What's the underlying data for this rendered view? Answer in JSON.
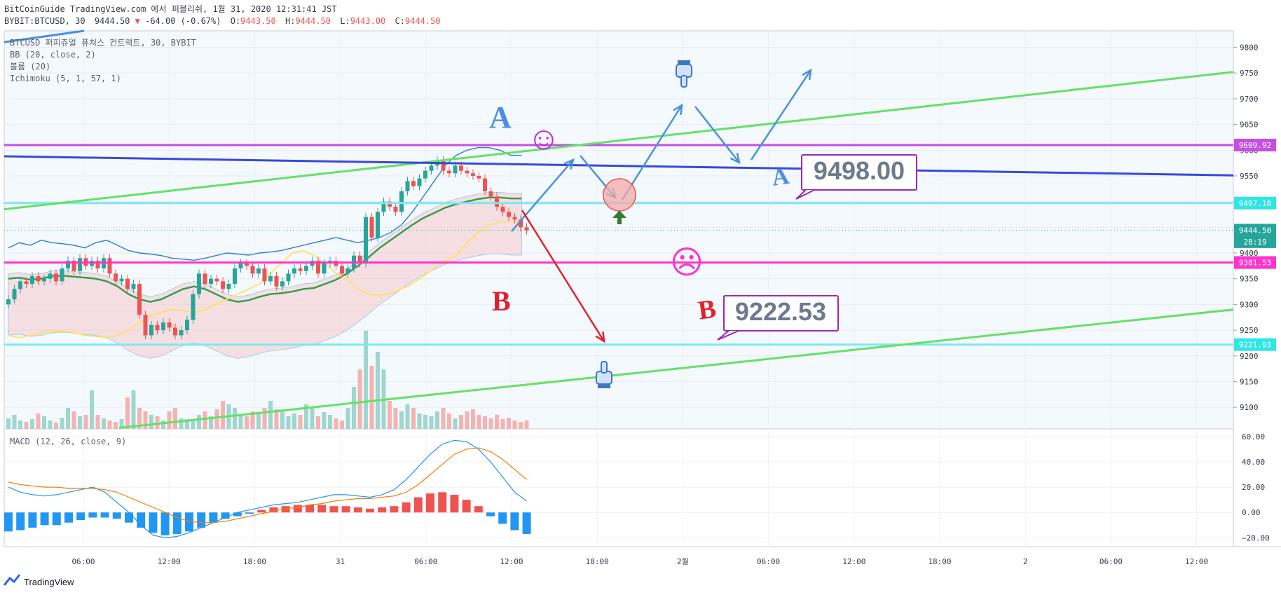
{
  "header": {
    "publish_line": "BitCoinGuide TradingView.com 에서 퍼블리쉬, 1월 31, 2020 12:31:41 JST",
    "symbol": "BYBIT:BTCUSD, 30",
    "last": "9444.50",
    "change_arrow": "▼",
    "change": "-64.00 (-0.67%)",
    "o_label": "O:",
    "o_value": "9443.50",
    "h_label": "H:",
    "h_value": "9444.50",
    "l_label": "L:",
    "l_value": "9443.00",
    "c_label": "C:",
    "c_value": "9444.50"
  },
  "legend": {
    "line1": "BTCUSD 퍼피츄얼 퓨쳐스 컨트랙트, 30, BYBIT",
    "line2": "BB (20, close, 2)",
    "line3": "볼륨 (20)",
    "line4": "Ichimoku (5, 1, 57, 1)",
    "macd": "MACD (12, 26, close, 9)"
  },
  "annotations": {
    "A_upper": "A",
    "B_lower": "B",
    "A_right": "A",
    "B_right": "B",
    "callout_a": "9498.00",
    "callout_b": "9222.53",
    "smiley": "☺",
    "frowny": "☹"
  },
  "footer": {
    "brand": "TradingView"
  },
  "colors": {
    "up": "#26a69a",
    "down": "#ef5350",
    "text": "#363a45",
    "red_text": "#ef5350",
    "annotation_blue": "#4a90e2",
    "annotation_red": "#e5202a",
    "trend_green": "#66e066",
    "horizontal_purple": "#c44ee6",
    "magenta": "#ff33cc",
    "cyan": "#7ee8f0",
    "navy": "#3949d8",
    "callout_text": "#6b7b8c"
  },
  "chart_data": [
    {
      "type": "candlestick",
      "x_tick_labels": [
        "06:00",
        "12:00",
        "18:00",
        "31",
        "06:00",
        "12:00",
        "18:00",
        "2월",
        "06:00",
        "12:00",
        "18:00",
        "2",
        "06:00",
        "12:00"
      ],
      "y_tick_labels": [
        9800,
        9750,
        9700,
        9650,
        9600,
        9550,
        9500,
        9450,
        9400,
        9350,
        9300,
        9250,
        9200,
        9150,
        9100
      ],
      "ylim": [
        9058,
        9832
      ],
      "price_labels": [
        {
          "text": "9609.92",
          "value": 9609.92,
          "color": "#c44ee6"
        },
        {
          "text": "9497.10",
          "value": 9497.1,
          "color": "#2ee6e6"
        },
        {
          "text": "9444.50",
          "value": 9444.5,
          "color": "#26a69a"
        },
        {
          "text": "28:19",
          "value": 9422,
          "color": "#26a69a"
        },
        {
          "text": "9381.53",
          "value": 9381.53,
          "color": "#ff33cc"
        },
        {
          "text": "9221.93",
          "value": 9221.93,
          "color": "#2ee6e6"
        }
      ],
      "closes": [
        9310,
        9330,
        9345,
        9340,
        9355,
        9345,
        9350,
        9360,
        9345,
        9370,
        9385,
        9365,
        9390,
        9375,
        9385,
        9370,
        9390,
        9360,
        9345,
        9350,
        9330,
        9340,
        9280,
        9240,
        9260,
        9250,
        9265,
        9255,
        9240,
        9250,
        9270,
        9320,
        9360,
        9340,
        9350,
        9345,
        9330,
        9340,
        9370,
        9380,
        9375,
        9360,
        9370,
        9345,
        9355,
        9335,
        9345,
        9360,
        9370,
        9365,
        9375,
        9385,
        9360,
        9380,
        9385,
        9375,
        9360,
        9370,
        9395,
        9380,
        9470,
        9430,
        9480,
        9500,
        9490,
        9480,
        9520,
        9540,
        9530,
        9545,
        9560,
        9570,
        9580,
        9560,
        9555,
        9570,
        9560,
        9555,
        9550,
        9545,
        9520,
        9510,
        9490,
        9480,
        9470,
        9465,
        9450,
        9444
      ],
      "volumes": [
        15,
        20,
        12,
        10,
        14,
        22,
        18,
        12,
        9,
        16,
        30,
        25,
        18,
        20,
        55,
        20,
        15,
        12,
        10,
        14,
        45,
        55,
        30,
        25,
        20,
        18,
        12,
        25,
        30,
        15,
        14,
        12,
        20,
        25,
        18,
        28,
        40,
        35,
        30,
        20,
        18,
        25,
        22,
        30,
        40,
        28,
        25,
        18,
        22,
        20,
        35,
        30,
        18,
        24,
        20,
        15,
        12,
        30,
        60,
        85,
        140,
        90,
        110,
        85,
        40,
        30,
        25,
        35,
        30,
        22,
        20,
        18,
        25,
        30,
        22,
        15,
        20,
        25,
        28,
        20,
        18,
        15,
        20,
        14,
        16,
        12,
        10,
        12
      ],
      "bb_upper": [
        9410,
        9420,
        9415,
        9425,
        9420,
        9418,
        9415,
        9410,
        9420,
        9425,
        9415,
        9405,
        9400,
        9398,
        9395,
        9390,
        9388,
        9386,
        9390,
        9395,
        9400,
        9398,
        9396,
        9400,
        9402,
        9405,
        9410,
        9415,
        9420,
        9425,
        9430,
        9425,
        9420,
        9425,
        9430,
        9440,
        9455,
        9480,
        9510,
        9540,
        9570,
        9590,
        9600,
        9605,
        9605,
        9600,
        9590,
        9590
      ],
      "bb_basis": [
        9350,
        9352,
        9348,
        9350,
        9355,
        9356,
        9354,
        9352,
        9350,
        9345,
        9335,
        9320,
        9310,
        9305,
        9310,
        9320,
        9330,
        9335,
        9330,
        9320,
        9310,
        9305,
        9308,
        9315,
        9320,
        9322,
        9325,
        9330,
        9332,
        9340,
        9348,
        9360,
        9375,
        9392,
        9410,
        9425,
        9440,
        9455,
        9468,
        9478,
        9488,
        9495,
        9500,
        9505,
        9508,
        9508,
        9506,
        9506
      ],
      "ichimoku_yellow": [
        9240,
        9235,
        9240,
        9245,
        9250,
        9248,
        9245,
        9240,
        9238,
        9236,
        9240,
        9250,
        9265,
        9278,
        9285,
        9290,
        9288,
        9284,
        9290,
        9300,
        9310,
        9320,
        9330,
        9340,
        9360,
        9380,
        9400,
        9405,
        9395,
        9380,
        9360,
        9350,
        9330,
        9320,
        9318,
        9322,
        9330,
        9340,
        9355,
        9370,
        9385,
        9395,
        9420,
        9440,
        9455,
        9460,
        9462,
        9460
      ]
    },
    {
      "type": "macd",
      "y_tick_labels": [
        "60.00",
        "40.00",
        "20.00",
        "0.00",
        "−20.00"
      ],
      "ylim": [
        -27,
        66
      ],
      "macd": [
        20,
        16,
        14,
        13,
        14,
        16,
        18,
        20,
        16,
        8,
        0,
        -10,
        -18,
        -20,
        -19,
        -16,
        -12,
        -8,
        -4,
        0,
        2,
        4,
        6,
        7,
        8,
        10,
        12,
        14,
        14,
        13,
        12,
        14,
        18,
        26,
        36,
        46,
        54,
        57,
        56,
        50,
        40,
        28,
        16,
        9
      ],
      "signal": [
        24,
        22,
        21,
        20,
        20,
        19,
        19,
        19,
        18,
        16,
        12,
        8,
        4,
        0,
        -4,
        -7,
        -8,
        -8,
        -7,
        -5,
        -3,
        -1,
        1,
        3,
        4,
        6,
        7,
        9,
        10,
        11,
        11,
        12,
        13,
        16,
        22,
        30,
        38,
        46,
        50,
        51,
        48,
        42,
        34,
        26
      ],
      "histogram": [
        -15,
        -14,
        -12,
        -10,
        -10,
        -8,
        -6,
        -4,
        -4,
        -5,
        -8,
        -12,
        -16,
        -18,
        -17,
        -15,
        -12,
        -8,
        -5,
        -3,
        -1,
        2,
        4,
        5,
        6,
        6,
        6,
        5,
        5,
        4,
        3,
        4,
        5,
        8,
        12,
        15,
        16,
        14,
        10,
        5,
        -3,
        -9,
        -14,
        -17
      ]
    }
  ]
}
